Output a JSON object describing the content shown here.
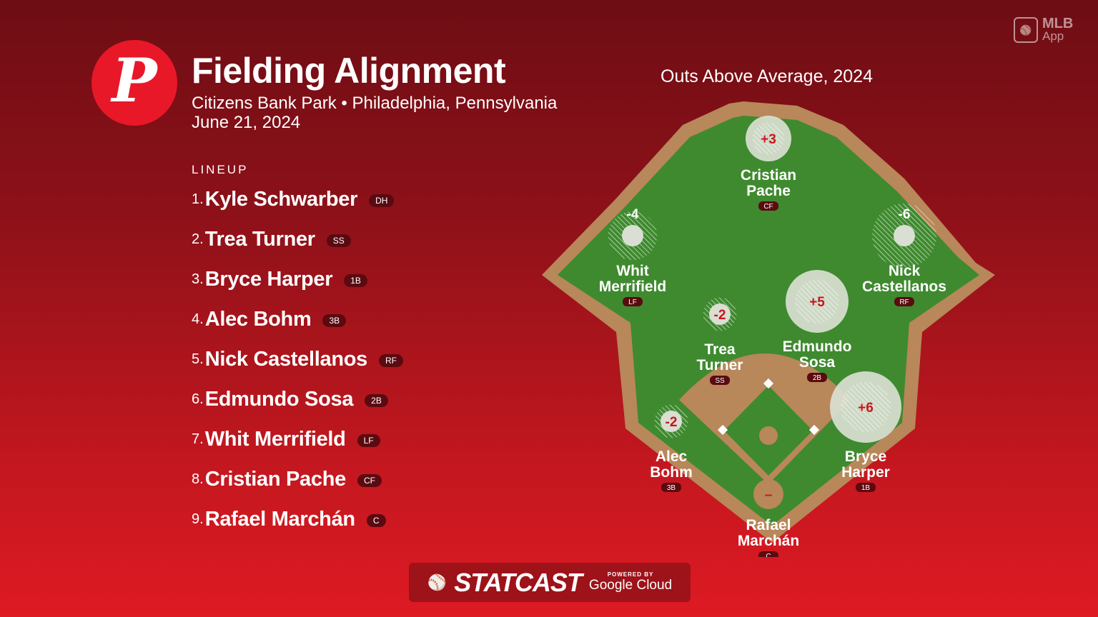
{
  "header": {
    "title": "Fielding Alignment",
    "venue": "Citizens Bank Park • Philadelphia, Pennsylvania",
    "date": "June 21, 2024",
    "team_logo_letter": "P"
  },
  "app_logo": {
    "line1": "MLB",
    "line2": "App"
  },
  "lineup": {
    "heading": "LINEUP",
    "players": [
      {
        "num": "1.",
        "name": "Kyle Schwarber",
        "pos": "DH"
      },
      {
        "num": "2.",
        "name": "Trea Turner",
        "pos": "SS"
      },
      {
        "num": "3.",
        "name": "Bryce Harper",
        "pos": "1B"
      },
      {
        "num": "4.",
        "name": "Alec Bohm",
        "pos": "3B"
      },
      {
        "num": "5.",
        "name": "Nick Castellanos",
        "pos": "RF"
      },
      {
        "num": "6.",
        "name": "Edmundo Sosa",
        "pos": "2B"
      },
      {
        "num": "7.",
        "name": "Whit Merrifield",
        "pos": "LF"
      },
      {
        "num": "8.",
        "name": "Cristian Pache",
        "pos": "CF"
      },
      {
        "num": "9.",
        "name": "Rafael Marchán",
        "pos": "C"
      }
    ]
  },
  "field": {
    "title": "Outs Above Average, 2024",
    "fielders": [
      {
        "line1": "Cristian",
        "line2": "Pache",
        "pos": "CF",
        "oaa": "+3",
        "oaa_value": 3
      },
      {
        "line1": "Whit",
        "line2": "Merrifield",
        "pos": "LF",
        "oaa": "-4",
        "oaa_value": -4
      },
      {
        "line1": "Nick",
        "line2": "Castellanos",
        "pos": "RF",
        "oaa": "-6",
        "oaa_value": -6
      },
      {
        "line1": "Trea",
        "line2": "Turner",
        "pos": "SS",
        "oaa": "-2",
        "oaa_value": -2
      },
      {
        "line1": "Edmundo",
        "line2": "Sosa",
        "pos": "2B",
        "oaa": "+5",
        "oaa_value": 5
      },
      {
        "line1": "Alec",
        "line2": "Bohm",
        "pos": "3B",
        "oaa": "-2",
        "oaa_value": -2
      },
      {
        "line1": "Bryce",
        "line2": "Harper",
        "pos": "1B",
        "oaa": "+6",
        "oaa_value": 6
      },
      {
        "line1": "Rafael",
        "line2": "Marchán",
        "pos": "C",
        "oaa": "–",
        "oaa_value": null
      }
    ]
  },
  "footer": {
    "statcast": "STATCAST",
    "powered_by": "POWERED BY",
    "google": "Google Cloud"
  },
  "colors": {
    "grass": "#3f8a2f",
    "dirt": "#b8875a",
    "badge": "#5a0a10",
    "oaa_text": "#c8161e"
  }
}
